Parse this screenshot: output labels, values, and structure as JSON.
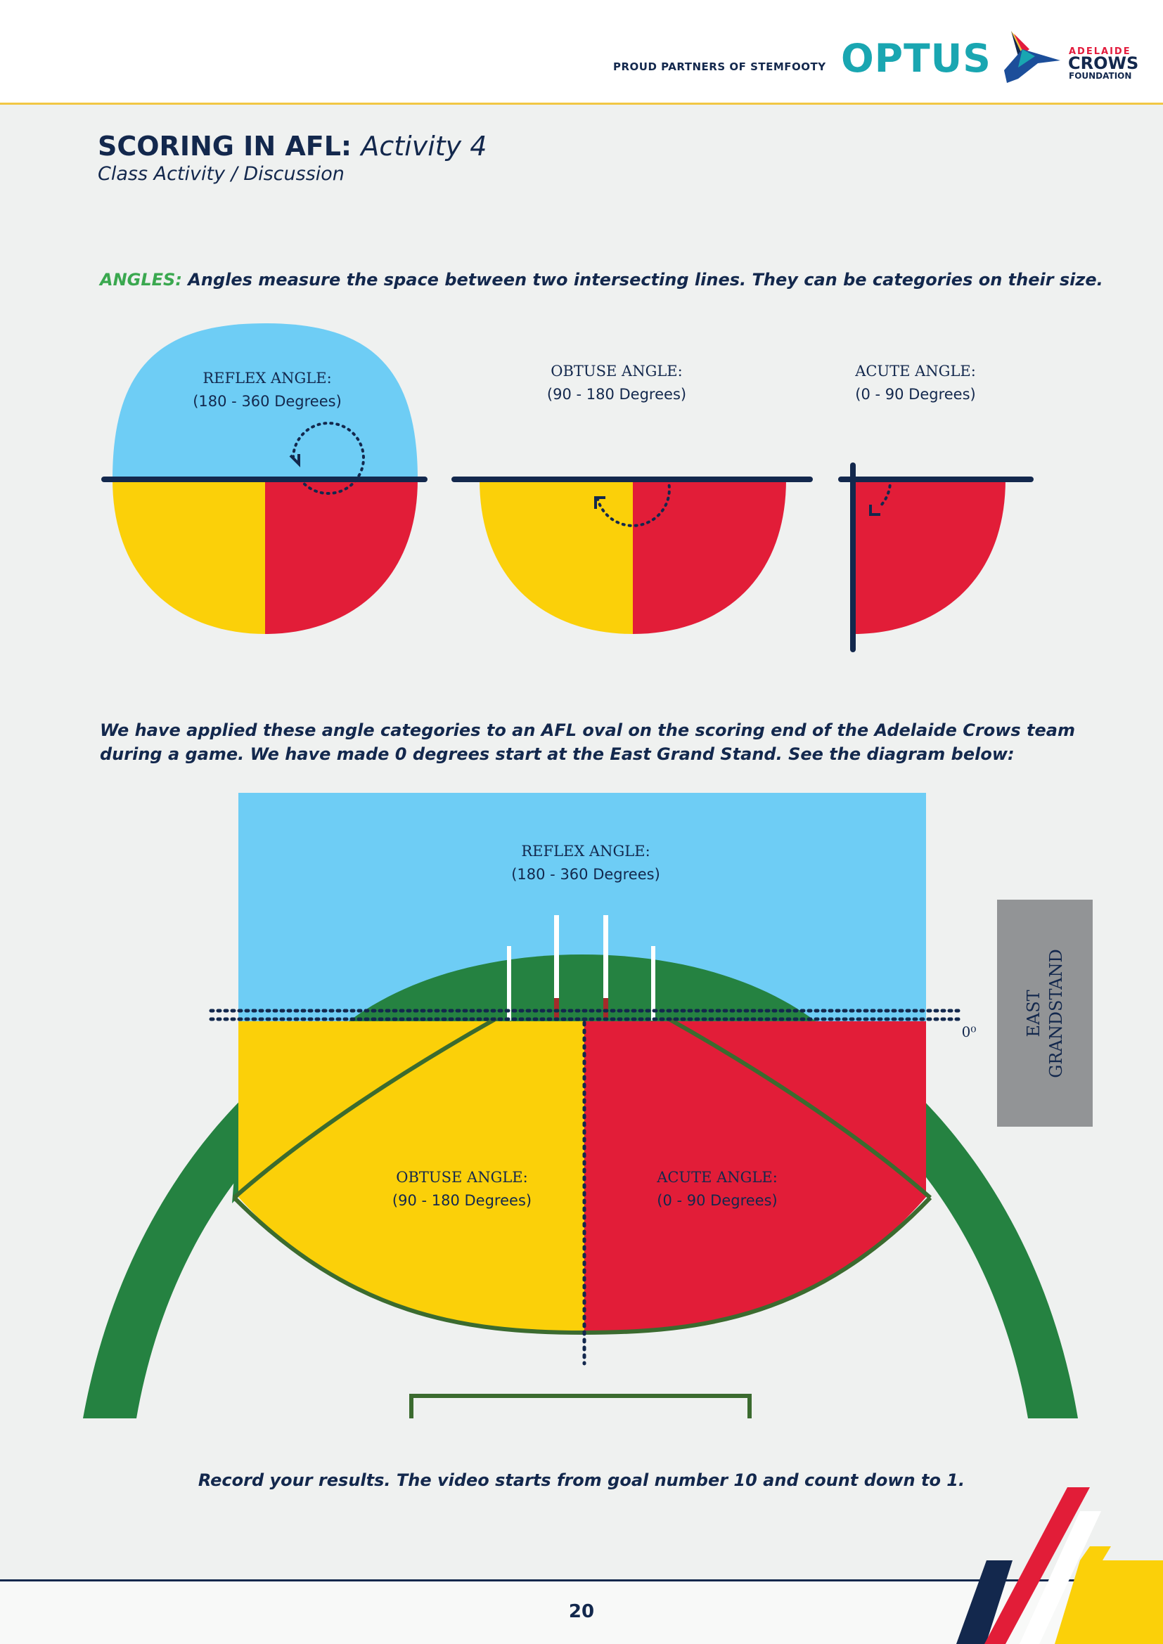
{
  "header": {
    "partners_text": "PROUD PARTNERS OF STEMFOOTY",
    "optus_logo": "OPTUS",
    "crows_line1": "ADELAIDE",
    "crows_line2": "CROWS",
    "crows_line3": "FOUNDATION"
  },
  "title": {
    "main": "SCORING IN AFL:",
    "activity": "Activity 4",
    "subtitle": "Class Activity / Discussion"
  },
  "angles": {
    "key": "ANGLES:",
    "text": "Angles measure the space between two intersecting lines. They can be categories on their size."
  },
  "diagram1": {
    "reflex_name": "REFLEX ANGLE:",
    "reflex_range": "(180 - 360 Degrees)",
    "obtuse_name": "OBTUSE ANGLE:",
    "obtuse_range": "(90 - 180 Degrees)",
    "acute_name": "ACUTE ANGLE:",
    "acute_range": "(0 - 90 Degrees)"
  },
  "description": "We have applied these angle categories to an AFL oval on the scoring end of the Adelaide Crows team during a game. We have made 0 degrees start at the East Grand Stand. See the diagram below:",
  "diagram2": {
    "reflex_name": "REFLEX ANGLE:",
    "reflex_range": "(180 - 360 Degrees)",
    "obtuse_name": "OBTUSE ANGLE:",
    "obtuse_range": "(90 - 180 Degrees)",
    "acute_name": "ACUTE ANGLE:",
    "acute_range": "(0 - 90 Degrees)",
    "zero_label": "0⁰",
    "stand_line1": "EAST",
    "stand_line2": "GRANDSTAND"
  },
  "record_text": "Record your results. The video starts from goal number 10 and count down to 1.",
  "page_number": "20",
  "colors": {
    "navy": "#13284d",
    "blue": "#6ecdf5",
    "yellow": "#fbd009",
    "red": "#e21d38",
    "green": "#258241",
    "grey": "#929496"
  }
}
